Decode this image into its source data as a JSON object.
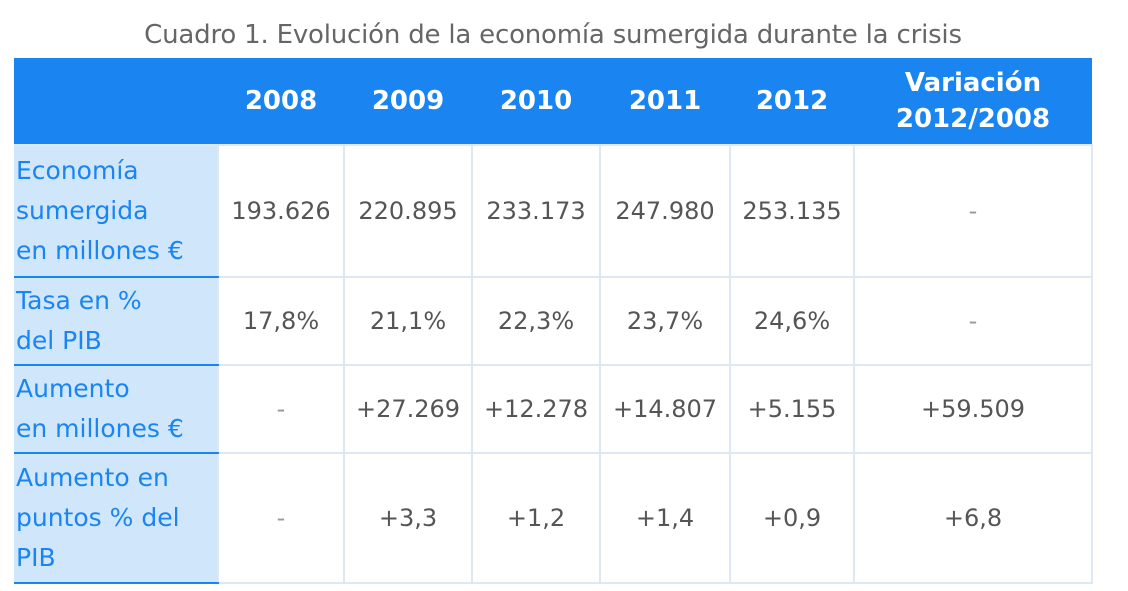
{
  "caption": "Cuadro 1. Evolución de la economía sumergida durante la crisis",
  "columns": [
    "",
    "2008",
    "2009",
    "2010",
    "2011",
    "2012",
    "Variación 2012/2008"
  ],
  "variation_header": {
    "line1": "Variación",
    "line2": "2012/2008"
  },
  "rows": [
    {
      "label_lines": [
        "Economía",
        "sumergida",
        "en millones €"
      ],
      "cells": [
        "193.626",
        "220.895",
        "233.173",
        "247.980",
        "253.135",
        "-"
      ]
    },
    {
      "label_lines": [
        "Tasa en %",
        "del PIB"
      ],
      "cells": [
        "17,8%",
        "21,1%",
        "22,3%",
        "23,7%",
        "24,6%",
        "-"
      ]
    },
    {
      "label_lines": [
        "Aumento",
        "en millones €"
      ],
      "cells": [
        "-",
        "+27.269",
        "+12.278",
        "+14.807",
        "+5.155",
        "+59.509"
      ]
    },
    {
      "label_lines": [
        "Aumento en",
        "puntos % del",
        "PIB"
      ],
      "cells": [
        "-",
        "+3,3",
        "+1,2",
        "+1,4",
        "+0,9",
        "+6,8"
      ]
    }
  ],
  "colors": {
    "header_bg": "#1a85f0",
    "rowhead_bg": "#cfe6fb",
    "rowhead_text": "#1a85f0",
    "cell_text": "#555555",
    "caption_text": "#666666"
  }
}
